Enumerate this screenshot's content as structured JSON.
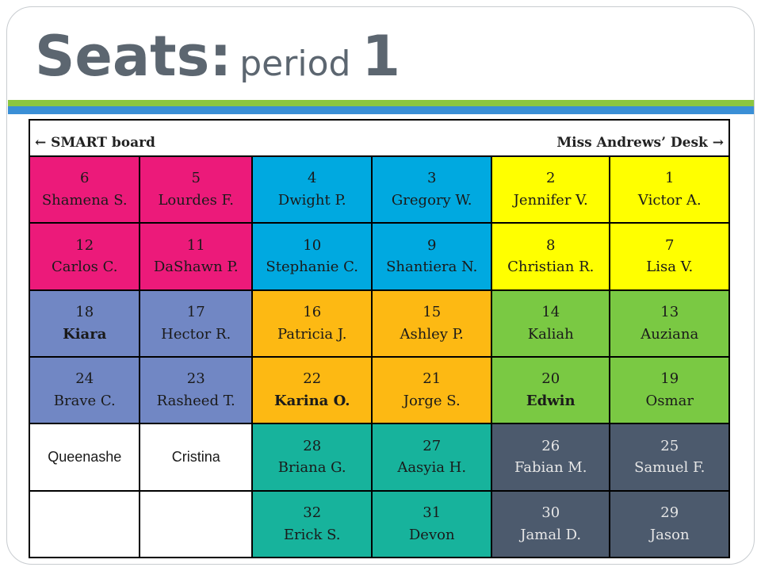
{
  "title": {
    "main": "Seats:",
    "sub": "period",
    "num": "1"
  },
  "header": {
    "left": "← SMART board",
    "right": "Miss Andrews’ Desk →"
  },
  "colors": {
    "pink": "#ec1a7a",
    "blue": "#00a9e0",
    "yellow": "#ffff00",
    "lavender": "#7187c4",
    "orange": "#fdb913",
    "green": "#7ac943",
    "teal": "#17b39c",
    "slate": "#4c5a6d",
    "white": "#ffffff"
  },
  "rows": [
    [
      {
        "num": "6",
        "name": "Shamena S.",
        "color": "#ec1a7a"
      },
      {
        "num": "5",
        "name": "Lourdes F.",
        "color": "#ec1a7a"
      },
      {
        "num": "4",
        "name": "Dwight P.",
        "color": "#00a9e0"
      },
      {
        "num": "3",
        "name": "Gregory W.",
        "color": "#00a9e0"
      },
      {
        "num": "2",
        "name": "Jennifer V.",
        "color": "#ffff00"
      },
      {
        "num": "1",
        "name": "Victor A.",
        "color": "#ffff00"
      }
    ],
    [
      {
        "num": "12",
        "name": "Carlos C.",
        "color": "#ec1a7a"
      },
      {
        "num": "11",
        "name": "DaShawn P.",
        "color": "#ec1a7a"
      },
      {
        "num": "10",
        "name": "Stephanie C.",
        "color": "#00a9e0"
      },
      {
        "num": "9",
        "name": "Shantiera N.",
        "color": "#00a9e0"
      },
      {
        "num": "8",
        "name": "Christian R.",
        "color": "#ffff00"
      },
      {
        "num": "7",
        "name": "Lisa V.",
        "color": "#ffff00"
      }
    ],
    [
      {
        "num": "18",
        "name": "Kiara",
        "color": "#7187c4",
        "bold": true
      },
      {
        "num": "17",
        "name": "Hector R.",
        "color": "#7187c4"
      },
      {
        "num": "16",
        "name": "Patricia J.",
        "color": "#fdb913"
      },
      {
        "num": "15",
        "name": "Ashley P.",
        "color": "#fdb913"
      },
      {
        "num": "14",
        "name": "Kaliah",
        "color": "#7ac943"
      },
      {
        "num": "13",
        "name": "Auziana",
        "color": "#7ac943"
      }
    ],
    [
      {
        "num": "24",
        "name": "Brave C.",
        "color": "#7187c4"
      },
      {
        "num": "23",
        "name": "Rasheed T.",
        "color": "#7187c4"
      },
      {
        "num": "22",
        "name": "Karina O.",
        "color": "#fdb913",
        "bold": true
      },
      {
        "num": "21",
        "name": "Jorge S.",
        "color": "#fdb913"
      },
      {
        "num": "20",
        "name": "Edwin",
        "color": "#7ac943",
        "bold": true
      },
      {
        "num": "19",
        "name": "Osmar",
        "color": "#7ac943"
      }
    ],
    [
      {
        "num": "",
        "name": "Queenashe",
        "color": "#ffffff",
        "sans": true
      },
      {
        "num": "",
        "name": "Cristina",
        "color": "#ffffff",
        "sans": true
      },
      {
        "num": "28",
        "name": "Briana G.",
        "color": "#17b39c"
      },
      {
        "num": "27",
        "name": "Aasyia H.",
        "color": "#17b39c"
      },
      {
        "num": "26",
        "name": "Fabian M.",
        "color": "#4c5a6d",
        "dark": true
      },
      {
        "num": "25",
        "name": "Samuel F.",
        "color": "#4c5a6d",
        "dark": true
      }
    ],
    [
      {
        "num": "",
        "name": "",
        "color": "#ffffff"
      },
      {
        "num": "",
        "name": "",
        "color": "#ffffff"
      },
      {
        "num": "32",
        "name": "Erick S.",
        "color": "#17b39c"
      },
      {
        "num": "31",
        "name": "Devon",
        "color": "#17b39c"
      },
      {
        "num": "30",
        "name": "Jamal D.",
        "color": "#4c5a6d",
        "dark": true
      },
      {
        "num": "29",
        "name": "Jason",
        "color": "#4c5a6d",
        "dark": true
      }
    ]
  ]
}
